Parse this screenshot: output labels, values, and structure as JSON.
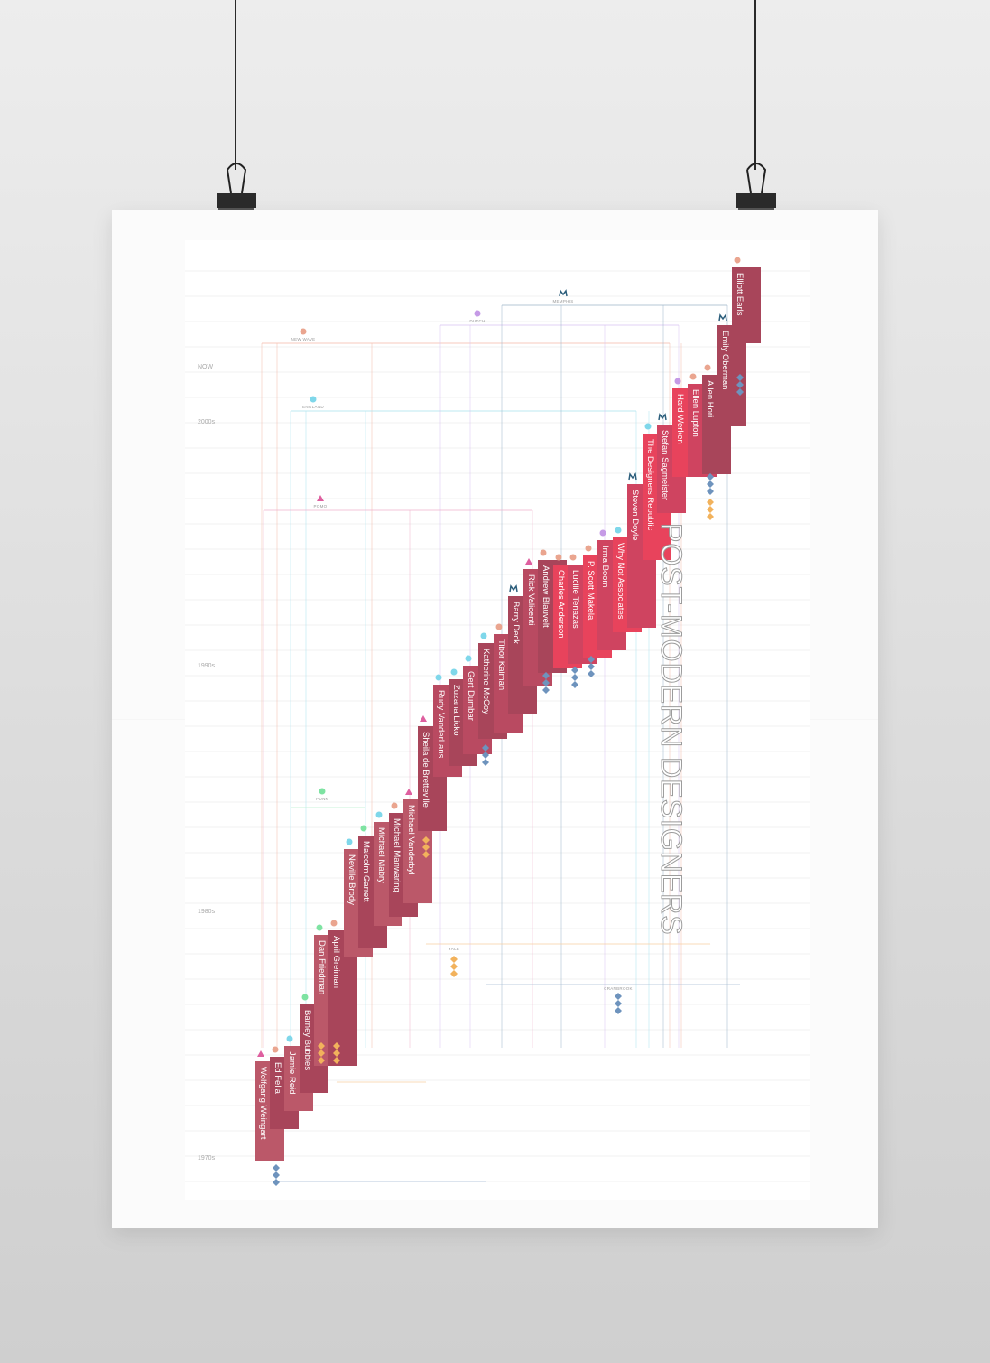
{
  "poster": {
    "title": "POST-MODERN DESIGNERS",
    "eras": [
      "NOW",
      "2000s",
      "1990s",
      "1980s",
      "1970s"
    ],
    "movements": {
      "new_wave": "NEW WAVE",
      "england": "ENGLAND",
      "dutch": "DUTCH",
      "pomo": "POMO",
      "punk": "PUNK",
      "yale": "YALE",
      "cranbrook": "CRANBROOK",
      "memphis": "MEMPHIS"
    },
    "designers": [
      "Wolfgang Weingart",
      "Ed Fella",
      "Jamie Reid",
      "Barney Bubbles",
      "Dan Friedman",
      "April Greiman",
      "Neville Brody",
      "Malcolm Garrett",
      "Michael Mabry",
      "Michael Manwaring",
      "Michael Vanderbyl",
      "Sheila de Bretteville",
      "Rudy VanderLans",
      "Zuzana Licko",
      "Gert Dumbar",
      "Katherine McCoy",
      "Tibor Kalman",
      "Barry Deck",
      "Rick Valicenti",
      "Andrew Blauvelt",
      "Charles Anderson",
      "Lucille Tenazas",
      "P. Scott Makela",
      "Irma Boom",
      "Why Not Associates",
      "Steven Doyle",
      "The Designers Republic",
      "Stefan Sagmeister",
      "Hard Werken",
      "Ellen Lupton",
      "Allen Hori",
      "Emily Oberman",
      "Elliott Earls"
    ],
    "colors": {
      "bar_dark": "#a8455a",
      "bar_mid": "#cf4460",
      "bar_bright": "#e8435c",
      "marker_pin": "#eaa58f",
      "marker_dutch": "#c59ae6",
      "marker_england": "#7fd7ea",
      "marker_punk": "#7ee3a2",
      "marker_pomo": "#de5f9f",
      "marker_memphis": "#2d5f7c",
      "marker_diamond_blue": "#6e93bd",
      "marker_diamond_yellow": "#f2b25c"
    }
  }
}
